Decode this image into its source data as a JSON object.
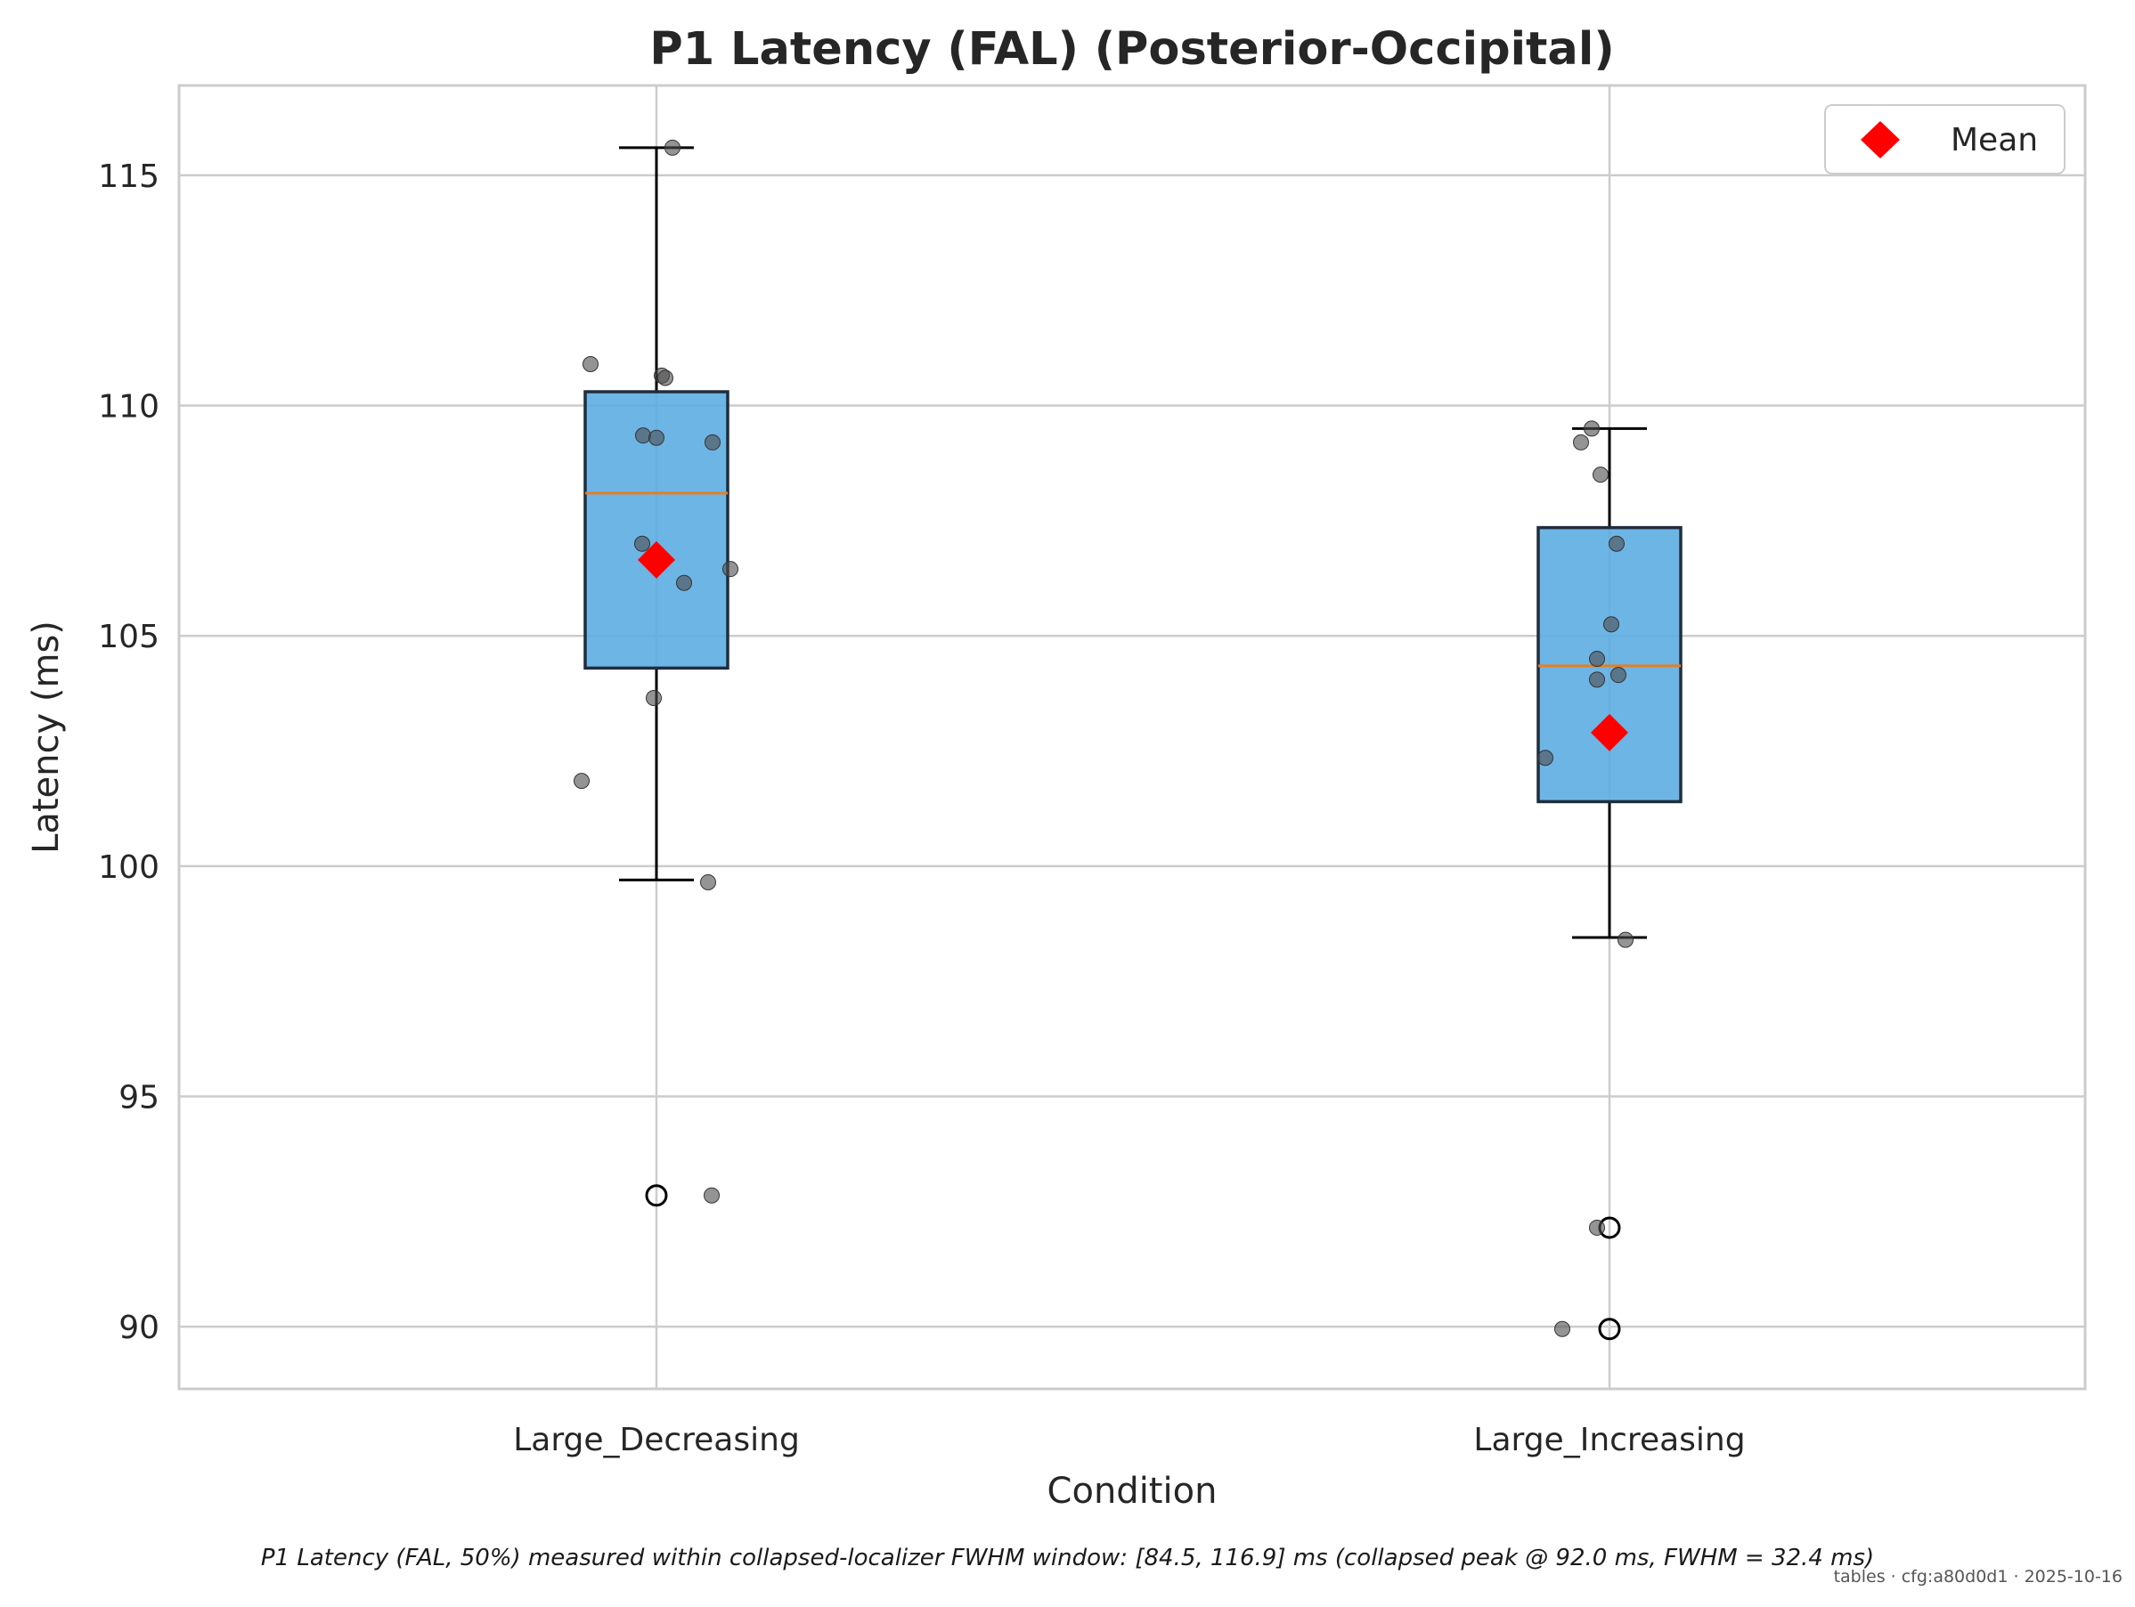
{
  "chart_data": {
    "type": "box",
    "title": "P1 Latency (FAL) (Posterior-Occipital)",
    "xlabel": "Condition",
    "ylabel": "Latency (ms)",
    "ylim": [
      88.65,
      116.95
    ],
    "yticks": [
      90,
      95,
      100,
      105,
      110,
      115
    ],
    "grid": true,
    "legend": {
      "position": "top-right",
      "entries": [
        {
          "label": "Mean",
          "marker": "diamond",
          "color": "#ff0000"
        }
      ]
    },
    "colors": {
      "box_fill": "#5dade2",
      "box_edge": "#1f2d3d",
      "median": "#e67e22",
      "mean": "#ff0000",
      "points": "#4d4d4d"
    },
    "categories": [
      "Large_Decreasing",
      "Large_Increasing"
    ],
    "boxes": [
      {
        "category": "Large_Decreasing",
        "whisker_low": 99.7,
        "q1": 104.3,
        "median": 108.1,
        "q3": 110.3,
        "whisker_high": 115.6,
        "mean": 106.65,
        "outliers": [
          92.85
        ],
        "points": [
          115.6,
          110.9,
          110.65,
          110.6,
          109.35,
          109.3,
          109.2,
          107.0,
          106.45,
          106.15,
          103.65,
          101.85,
          99.65,
          92.85
        ]
      },
      {
        "category": "Large_Increasing",
        "whisker_low": 98.45,
        "q1": 101.4,
        "median": 104.35,
        "q3": 107.35,
        "whisker_high": 109.5,
        "mean": 102.9,
        "outliers": [
          92.15,
          89.95
        ],
        "points": [
          109.5,
          109.2,
          108.5,
          107.0,
          105.25,
          104.5,
          104.15,
          104.05,
          102.35,
          98.4,
          92.15,
          89.95
        ]
      }
    ]
  },
  "caption": "P1 Latency (FAL, 50%) measured within collapsed-localizer FWHM window: [84.5, 116.9] ms (collapsed peak @ 92.0 ms, FWHM = 32.4 ms)",
  "stamp": "tables · cfg:a80d0d1 · 2025-10-16"
}
